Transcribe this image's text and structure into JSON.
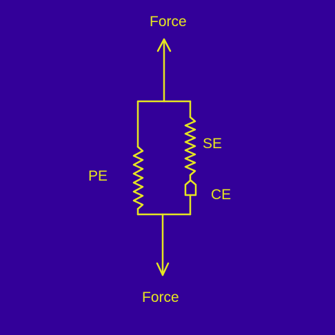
{
  "labels": {
    "top_force": "Force",
    "bottom_force": "Force",
    "parallel_element": "PE",
    "series_element": "SE",
    "contractile_element": "CE"
  },
  "colors": {
    "background": "#330099",
    "stroke": "#e6e621"
  }
}
